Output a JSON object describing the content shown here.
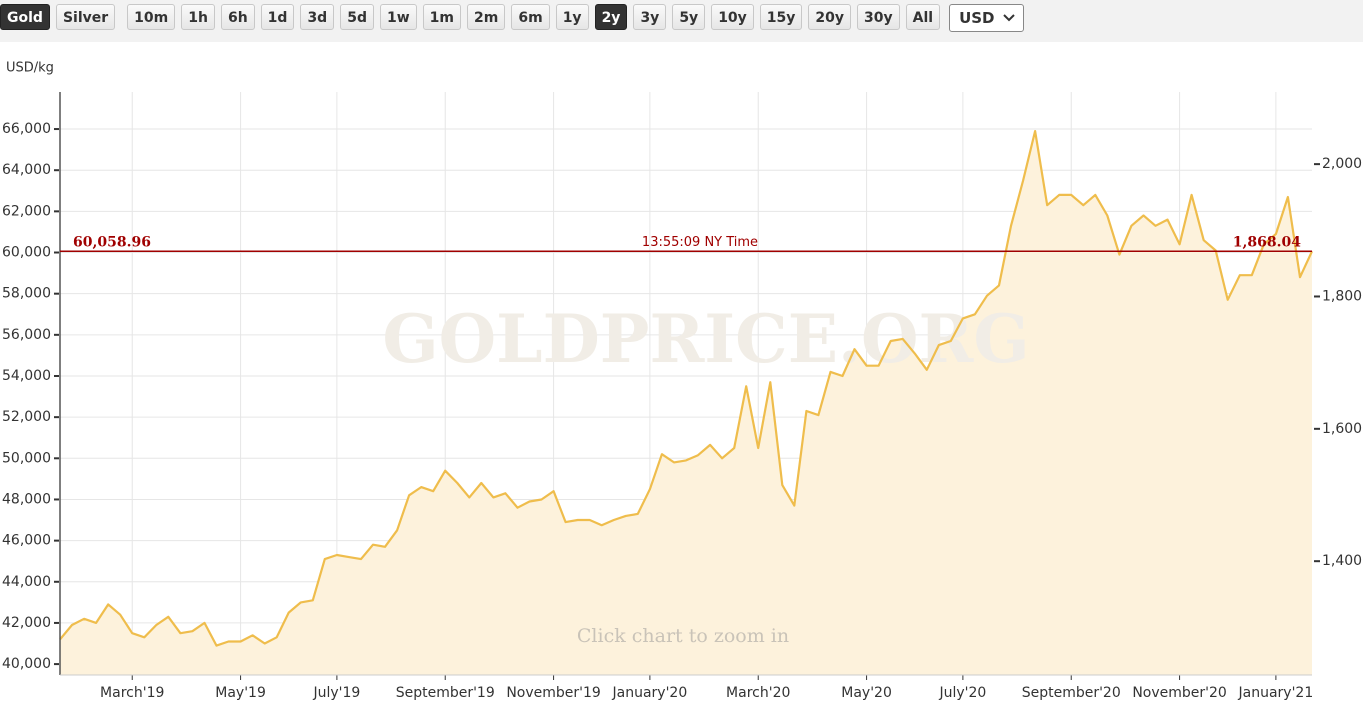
{
  "toolbar": {
    "metals": [
      "Gold",
      "Silver"
    ],
    "active_metal": 0,
    "ranges": [
      "10m",
      "1h",
      "6h",
      "1d",
      "3d",
      "5d",
      "1w",
      "1m",
      "2m",
      "6m",
      "1y",
      "2y",
      "3y",
      "5y",
      "10y",
      "15y",
      "20y",
      "30y",
      "All"
    ],
    "active_range": 11,
    "currency": "USD"
  },
  "chart_data": {
    "type": "line",
    "y_label": "USD/kg",
    "watermark": "GOLDPRICE.ORG",
    "hint": "Click chart to zoom in",
    "color": "#efbd4c",
    "fill": "#fdf2dc",
    "grid": true,
    "price_line": {
      "value": 60058.96,
      "label": "60,058.96"
    },
    "price_line_oz": {
      "value": 1868.04,
      "label": "1,868.04"
    },
    "price_time": "13:55:09 NY Time",
    "categories": [
      null,
      null,
      null,
      null,
      null,
      null,
      "March'19",
      null,
      null,
      null,
      null,
      null,
      null,
      null,
      null,
      "May'19",
      null,
      null,
      null,
      null,
      null,
      null,
      null,
      "July'19",
      null,
      null,
      null,
      null,
      null,
      null,
      null,
      null,
      "September'19",
      null,
      null,
      null,
      null,
      null,
      null,
      null,
      null,
      "November'19",
      null,
      null,
      null,
      null,
      null,
      null,
      null,
      "January'20",
      null,
      null,
      null,
      null,
      null,
      null,
      null,
      null,
      "March'20",
      null,
      null,
      null,
      null,
      null,
      null,
      null,
      null,
      "May'20",
      null,
      null,
      null,
      null,
      null,
      null,
      null,
      "July'20",
      null,
      null,
      null,
      null,
      null,
      null,
      null,
      null,
      "September'20",
      null,
      null,
      null,
      null,
      null,
      null,
      null,
      null,
      "November'20",
      null,
      null,
      null,
      null,
      null,
      null,
      null,
      "January'21",
      null,
      null,
      null
    ],
    "values": [
      41200,
      41900,
      42200,
      42000,
      42900,
      42400,
      41500,
      41300,
      41900,
      42300,
      41500,
      41600,
      42000,
      40900,
      41100,
      41100,
      41400,
      41000,
      41300,
      42500,
      43000,
      43100,
      45100,
      45300,
      45200,
      45100,
      45800,
      45700,
      46500,
      48200,
      48600,
      48400,
      49400,
      48800,
      48100,
      48800,
      48100,
      48300,
      47600,
      47900,
      48000,
      48400,
      46900,
      47000,
      47000,
      46750,
      47000,
      47200,
      47300,
      48500,
      50200,
      49800,
      49900,
      50150,
      50650,
      50000,
      50500,
      53500,
      50500,
      53700,
      48700,
      47700,
      52300,
      52100,
      54200,
      54000,
      55300,
      54500,
      54500,
      55700,
      55800,
      55100,
      54300,
      55500,
      55700,
      56800,
      57000,
      57900,
      58400,
      61300,
      63500,
      65900,
      62300,
      62800,
      62800,
      62300,
      62800,
      61800,
      59900,
      61300,
      61800,
      61300,
      61600,
      60400,
      62800,
      60600,
      60100,
      57700,
      58900,
      58900,
      60400,
      60900,
      62700,
      58800,
      60059
    ],
    "ylim": [
      39470,
      67800
    ],
    "yticks": [
      {
        "value": 40000,
        "label": "40,000"
      },
      {
        "value": 42000,
        "label": "42,000"
      },
      {
        "value": 44000,
        "label": "44,000"
      },
      {
        "value": 46000,
        "label": "46,000"
      },
      {
        "value": 48000,
        "label": "48,000"
      },
      {
        "value": 50000,
        "label": "50,000"
      },
      {
        "value": 52000,
        "label": "52,000"
      },
      {
        "value": 54000,
        "label": "54,000"
      },
      {
        "value": 56000,
        "label": "56,000"
      },
      {
        "value": 58000,
        "label": "58,000"
      },
      {
        "value": 60000,
        "label": "60,000"
      },
      {
        "value": 62000,
        "label": "62,000"
      },
      {
        "value": 64000,
        "label": "64,000"
      },
      {
        "value": 66000,
        "label": "66,000"
      }
    ],
    "y2lim": [
      1228,
      2109
    ],
    "y2ticks": [
      {
        "value": 1400,
        "label": "1,400"
      },
      {
        "value": 1600,
        "label": "1,600"
      },
      {
        "value": 1800,
        "label": "1,800"
      },
      {
        "value": 2000,
        "label": "2,000"
      }
    ]
  }
}
